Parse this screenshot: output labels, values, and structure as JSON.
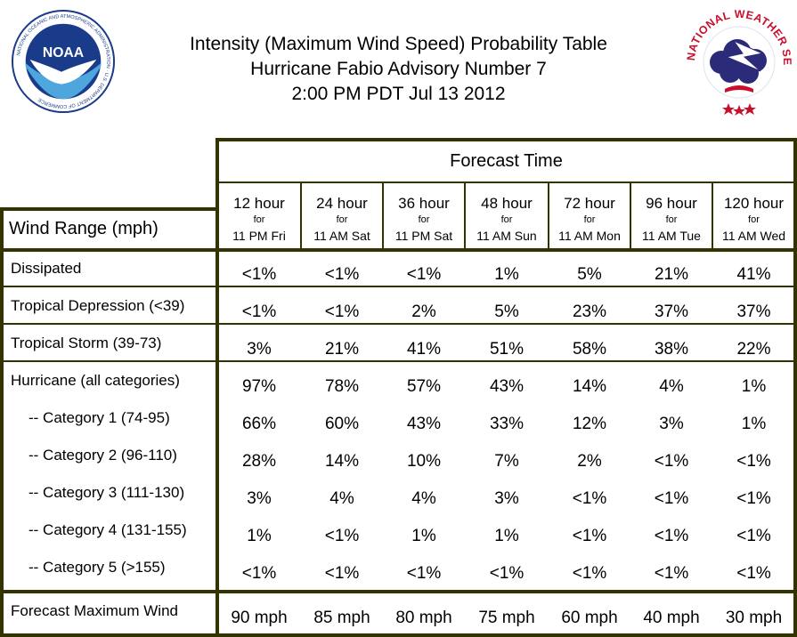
{
  "header": {
    "title_line1": "Intensity (Maximum Wind Speed) Probability Table",
    "title_line2": "Hurricane Fabio Advisory Number 7",
    "title_line3": "2:00 PM PDT Jul 13 2012"
  },
  "logos": {
    "noaa_text": "NOAA",
    "noaa_ring": "NATIONAL OCEANIC AND ATMOSPHERIC ADMINISTRATION · U.S. DEPARTMENT OF COMMERCE",
    "nws_ring": "NATIONAL WEATHER SERVICE"
  },
  "table": {
    "forecast_time_label": "Forecast Time",
    "wind_range_label": "Wind Range (mph)",
    "for_label": "for",
    "columns": [
      {
        "hour": "12 hour",
        "time": "11 PM Fri"
      },
      {
        "hour": "24 hour",
        "time": "11 AM Sat"
      },
      {
        "hour": "36 hour",
        "time": "11 PM Sat"
      },
      {
        "hour": "48 hour",
        "time": "11 AM Sun"
      },
      {
        "hour": "72 hour",
        "time": "11 AM Mon"
      },
      {
        "hour": "96 hour",
        "time": "11 AM Tue"
      },
      {
        "hour": "120 hour",
        "time": "11 AM Wed"
      }
    ],
    "rows": [
      {
        "label": "Dissipated",
        "values": [
          "<1%",
          "<1%",
          "<1%",
          "1%",
          "5%",
          "21%",
          "41%"
        ]
      },
      {
        "label": "Tropical Depression (<39)",
        "values": [
          "<1%",
          "<1%",
          "2%",
          "5%",
          "23%",
          "37%",
          "37%"
        ]
      },
      {
        "label": "Tropical Storm (39-73)",
        "values": [
          "3%",
          "21%",
          "41%",
          "51%",
          "58%",
          "38%",
          "22%"
        ]
      },
      {
        "label": "Hurricane (all categories)",
        "values": [
          "97%",
          "78%",
          "57%",
          "43%",
          "14%",
          "4%",
          "1%"
        ]
      },
      {
        "label": "-- Category 1 (74-95)",
        "values": [
          "66%",
          "60%",
          "43%",
          "33%",
          "12%",
          "3%",
          "1%"
        ]
      },
      {
        "label": "-- Category 2 (96-110)",
        "values": [
          "28%",
          "14%",
          "10%",
          "7%",
          "2%",
          "<1%",
          "<1%"
        ]
      },
      {
        "label": "-- Category 3 (111-130)",
        "values": [
          "3%",
          "4%",
          "4%",
          "3%",
          "<1%",
          "<1%",
          "<1%"
        ]
      },
      {
        "label": "-- Category 4 (131-155)",
        "values": [
          "1%",
          "<1%",
          "1%",
          "1%",
          "<1%",
          "<1%",
          "<1%"
        ]
      },
      {
        "label": "-- Category 5 (>155)",
        "values": [
          "<1%",
          "<1%",
          "<1%",
          "<1%",
          "<1%",
          "<1%",
          "<1%"
        ]
      }
    ],
    "footer": {
      "label": "Forecast Maximum Wind",
      "values": [
        "90 mph",
        "85 mph",
        "80 mph",
        "75 mph",
        "60 mph",
        "40 mph",
        "30 mph"
      ]
    }
  },
  "colors": {
    "frame": "#333300",
    "noaa_blue": "#1a3a8a",
    "nws_red": "#c8102e",
    "nws_cloud": "#2b2b7a"
  }
}
